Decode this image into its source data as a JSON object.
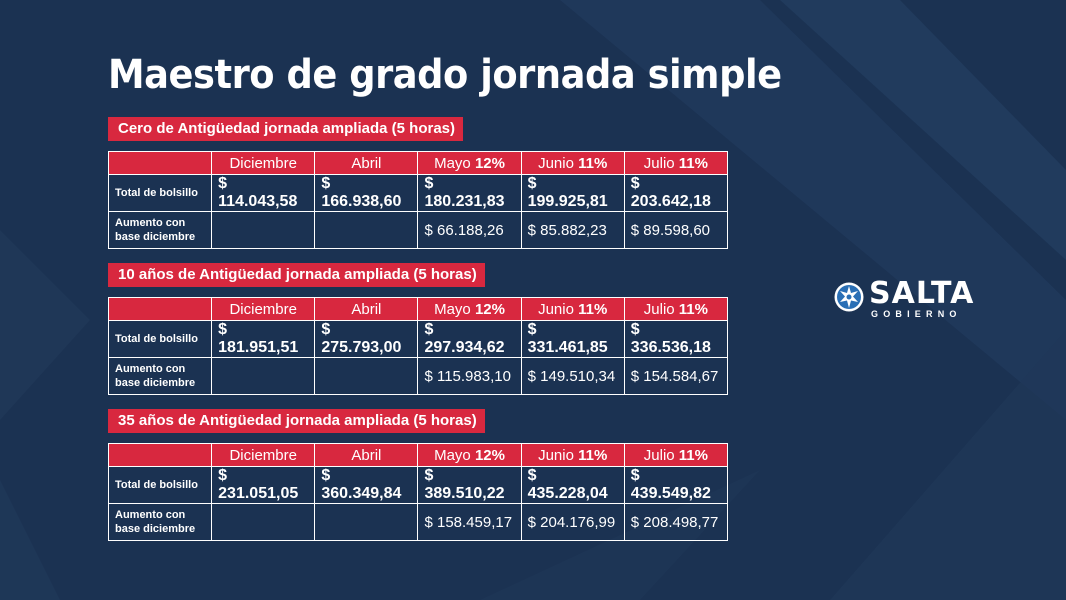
{
  "title": "Maestro de grado jornada simple",
  "columns": [
    {
      "name": "Diciembre",
      "pct": ""
    },
    {
      "name": "Abril",
      "pct": ""
    },
    {
      "name": "Mayo",
      "pct": "12%"
    },
    {
      "name": "Junio",
      "pct": "11%"
    },
    {
      "name": "Julio",
      "pct": "11%"
    }
  ],
  "row_labels": {
    "total": "Total de bolsillo",
    "increase_line1": "Aumento con",
    "increase_line2": "base diciembre"
  },
  "sections": [
    {
      "label": "Cero de Antigüedad jornada ampliada (5 horas)",
      "total": [
        "$ 114.043,58",
        "$ 166.938,60",
        "$ 180.231,83",
        "$ 199.925,81",
        "$ 203.642,18"
      ],
      "increase": [
        "",
        "",
        "$ 66.188,26",
        "$ 85.882,23",
        "$ 89.598,60"
      ]
    },
    {
      "label": "10 años de Antigüedad jornada ampliada (5 horas)",
      "total": [
        "$ 181.951,51",
        "$ 275.793,00",
        "$ 297.934,62",
        "$ 331.461,85",
        "$ 336.536,18"
      ],
      "increase": [
        "",
        "",
        "$ 115.983,10",
        "$ 149.510,34",
        "$ 154.584,67"
      ]
    },
    {
      "label": "35 años de Antigüedad jornada ampliada (5 horas)",
      "total": [
        "$ 231.051,05",
        "$ 360.349,84",
        "$ 389.510,22",
        "$ 435.228,04",
        "$ 439.549,82"
      ],
      "increase": [
        "",
        "",
        "$ 158.459,17",
        "$ 204.176,99",
        "$ 208.498,77"
      ]
    }
  ],
  "logo": {
    "name": "SALTA",
    "sub": "GOBIERNO",
    "icon": "salta-star-emblem-icon",
    "colors": {
      "blue": "#2a6fb5",
      "white": "#ffffff"
    }
  },
  "colors": {
    "background": "#1a3050",
    "accent": "#d8283f"
  }
}
